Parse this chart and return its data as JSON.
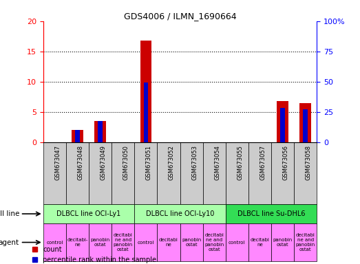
{
  "title": "GDS4006 / ILMN_1690664",
  "samples": [
    "GSM673047",
    "GSM673048",
    "GSM673049",
    "GSM673050",
    "GSM673051",
    "GSM673052",
    "GSM673053",
    "GSM673054",
    "GSM673055",
    "GSM673057",
    "GSM673056",
    "GSM673058"
  ],
  "count_values": [
    0,
    2.0,
    3.5,
    0,
    16.8,
    0,
    0,
    0,
    0,
    0,
    6.8,
    6.5
  ],
  "percentile_values": [
    0,
    10,
    17.5,
    0,
    49,
    0,
    0,
    0,
    0,
    0,
    28,
    27
  ],
  "cell_line_groups": [
    {
      "label": "DLBCL line OCI-Ly1",
      "start": 0,
      "end": 3,
      "color": "#aaffaa"
    },
    {
      "label": "DLBCL line OCI-Ly10",
      "start": 4,
      "end": 7,
      "color": "#aaffaa"
    },
    {
      "label": "DLBCL line Su-DHL6",
      "start": 8,
      "end": 11,
      "color": "#33dd55"
    }
  ],
  "agent_labels": [
    "control",
    "decitabi-\nne",
    "panobin\nostat",
    "decitabi\nne and\npanobin\nostat",
    "control",
    "decitabi\nne",
    "panobin\nostat",
    "decitabi\nne and\npanobin\nostat",
    "control",
    "decitabi\nne",
    "panobin\nostat",
    "decitabi\nne and\npanobin\nostat"
  ],
  "ylim_left": [
    0,
    20
  ],
  "ylim_right": [
    0,
    100
  ],
  "yticks_left": [
    0,
    5,
    10,
    15,
    20
  ],
  "yticks_right": [
    0,
    25,
    50,
    75,
    100
  ],
  "yticklabels_right": [
    "0",
    "25",
    "50",
    "75",
    "100%"
  ],
  "bar_color_red": "#cc0000",
  "bar_color_blue": "#0000cc",
  "bg_color": "#ffffff",
  "sample_bg_color": "#cccccc",
  "cell_line_color_1": "#aaffaa",
  "cell_line_color_2": "#33dd55",
  "agent_color": "#ff88ff",
  "legend_red_label": "count",
  "legend_blue_label": "percentile rank within the sample",
  "left_label_color": "#333333",
  "arrow_color": "#666666"
}
